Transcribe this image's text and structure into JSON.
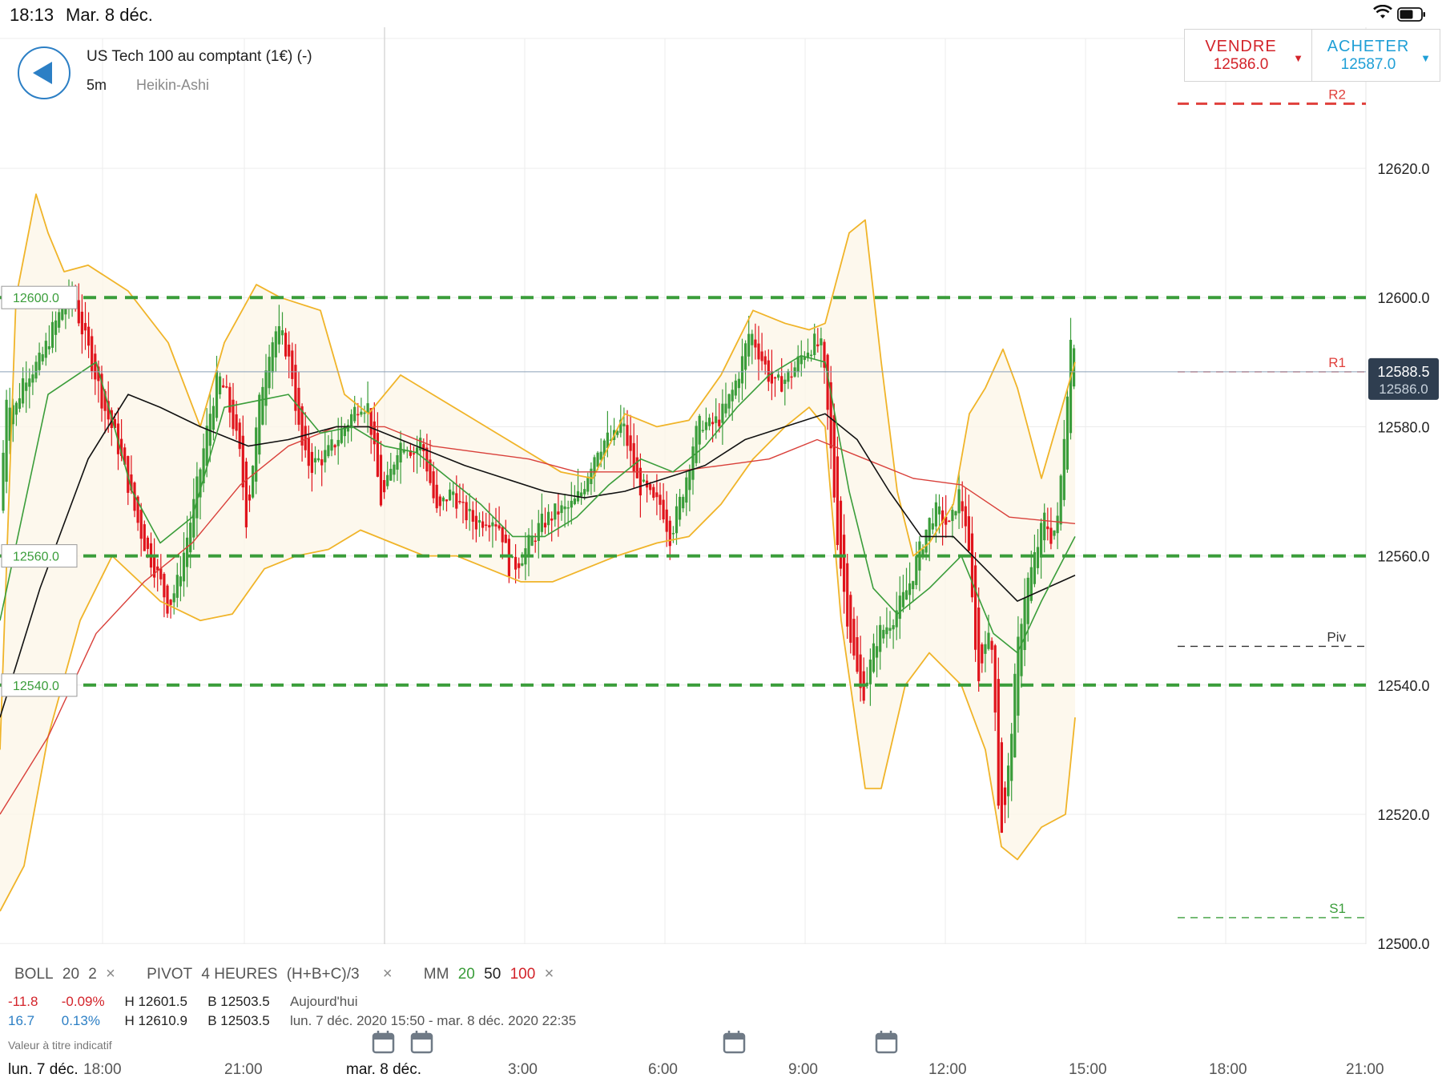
{
  "status_bar": {
    "time": "18:13",
    "date": "Mar. 8 déc."
  },
  "instrument": {
    "title": "US Tech 100 au comptant (1€) (-)",
    "timeframe": "5m",
    "chart_type": "Heikin-Ashi"
  },
  "trade": {
    "sell_label": "VENDRE",
    "sell_price": "12586.0",
    "buy_label": "ACHETER",
    "buy_price": "12587.0",
    "arrow": "▼"
  },
  "indicators": {
    "boll": {
      "name": "BOLL",
      "period": "20",
      "dev": "2"
    },
    "pivot": {
      "name": "PIVOT",
      "period": "4 HEURES",
      "formula": "(H+B+C)/3"
    },
    "mm": {
      "name": "MM",
      "p1": "20",
      "p2": "50",
      "p3": "100"
    },
    "remove_icon": "×"
  },
  "stats": [
    {
      "change": "-11.8",
      "pct": "-0.09%",
      "high": "H 12601.5",
      "low": "B 12503.5",
      "period": "Aujourd'hui",
      "color": "#d3232a"
    },
    {
      "change": "16.7",
      "pct": "0.13%",
      "high": "H 12610.9",
      "low": "B 12503.5",
      "period": "lun. 7 déc. 2020 15:50 - mar. 8 déc. 2020 22:35",
      "color": "#2c7fc5"
    }
  ],
  "disclaimer": "Valeur à titre indicatif",
  "price_axis": {
    "ticks": [
      "12620.0",
      "12600.0",
      "12580.0",
      "12560.0",
      "12540.0",
      "12520.0",
      "12500.0"
    ],
    "current_price": "12588.5",
    "current_price_under": "12586.0"
  },
  "levels": {
    "alerts": [
      "12600.0",
      "12560.0",
      "12540.0"
    ],
    "pivots": [
      {
        "name": "R2",
        "color": "#e0403c"
      },
      {
        "name": "R1",
        "color": "#e0403c"
      },
      {
        "name": "Piv",
        "color": "#333333"
      },
      {
        "name": "S1",
        "color": "#3a9d3a"
      }
    ]
  },
  "time_axis": {
    "labels": [
      "lun. 7 déc.",
      "18:00",
      "21:00",
      "mar. 8 déc.",
      "3:00",
      "6:00",
      "9:00",
      "12:00",
      "15:00",
      "18:00",
      "21:00"
    ]
  },
  "colors": {
    "up": "#3a9d3a",
    "down": "#e0141c",
    "boll": "#f0b429",
    "ma20": "#3a9d3a",
    "ma50": "#111111",
    "ma100": "#d9403a",
    "alert": "#3a9d3a"
  },
  "chart_data": {
    "type": "candlestick",
    "style": "Heikin-Ashi",
    "ylim": [
      12500,
      12620
    ],
    "y_ticks": [
      12500,
      12520,
      12540,
      12560,
      12580,
      12600,
      12620
    ],
    "x_ticks": [
      "18:00",
      "21:00",
      "3:00",
      "6:00",
      "9:00",
      "12:00",
      "15:00",
      "18:00",
      "21:00"
    ],
    "current_price": 12588.5,
    "alert_levels": [
      12600,
      12560,
      12540
    ],
    "pivot_levels": {
      "R2": 12630,
      "R1": 12588.5,
      "Piv": 12546,
      "S1": 12504
    },
    "indicators": [
      "BOLL 20 2",
      "PIVOT 4 HEURES (H+B+C)/3",
      "MM 20",
      "MM 50",
      "MM 100"
    ],
    "close_path": [
      [
        0,
        12567
      ],
      [
        8,
        12585
      ],
      [
        20,
        12583
      ],
      [
        30,
        12588
      ],
      [
        50,
        12590
      ],
      [
        62,
        12594
      ],
      [
        80,
        12599
      ],
      [
        90,
        12601
      ],
      [
        100,
        12596
      ],
      [
        115,
        12590
      ],
      [
        130,
        12583
      ],
      [
        145,
        12578
      ],
      [
        158,
        12572
      ],
      [
        170,
        12566
      ],
      [
        180,
        12562
      ],
      [
        190,
        12559
      ],
      [
        200,
        12556
      ],
      [
        210,
        12552
      ],
      [
        222,
        12556
      ],
      [
        232,
        12562
      ],
      [
        242,
        12568
      ],
      [
        252,
        12575
      ],
      [
        262,
        12582
      ],
      [
        272,
        12588
      ],
      [
        282,
        12585
      ],
      [
        292,
        12580
      ],
      [
        300,
        12575
      ],
      [
        308,
        12565
      ],
      [
        316,
        12575
      ],
      [
        325,
        12585
      ],
      [
        335,
        12592
      ],
      [
        345,
        12595
      ],
      [
        355,
        12593
      ],
      [
        365,
        12588
      ],
      [
        372,
        12580
      ],
      [
        380,
        12575
      ],
      [
        390,
        12574
      ],
      [
        400,
        12575
      ],
      [
        410,
        12576
      ],
      [
        420,
        12578
      ],
      [
        430,
        12580
      ],
      [
        440,
        12582
      ],
      [
        450,
        12584
      ],
      [
        460,
        12583
      ],
      [
        468,
        12575
      ],
      [
        476,
        12568
      ],
      [
        486,
        12572
      ],
      [
        496,
        12577
      ],
      [
        506,
        12578
      ],
      [
        516,
        12576
      ],
      [
        526,
        12578
      ],
      [
        536,
        12572
      ],
      [
        546,
        12566
      ],
      [
        556,
        12569
      ],
      [
        566,
        12570
      ],
      [
        576,
        12567
      ],
      [
        586,
        12566
      ],
      [
        596,
        12565
      ],
      [
        606,
        12566
      ],
      [
        616,
        12566
      ],
      [
        626,
        12564
      ],
      [
        636,
        12558
      ],
      [
        646,
        12559
      ],
      [
        656,
        12561
      ],
      [
        666,
        12563
      ],
      [
        676,
        12565
      ],
      [
        686,
        12566
      ],
      [
        696,
        12567
      ],
      [
        706,
        12567
      ],
      [
        716,
        12568
      ],
      [
        726,
        12570
      ],
      [
        736,
        12574
      ],
      [
        746,
        12577
      ],
      [
        756,
        12578
      ],
      [
        766,
        12578
      ],
      [
        776,
        12581
      ],
      [
        786,
        12576
      ],
      [
        796,
        12571
      ],
      [
        806,
        12570
      ],
      [
        816,
        12568
      ],
      [
        826,
        12568
      ],
      [
        836,
        12563
      ],
      [
        846,
        12567
      ],
      [
        856,
        12572
      ],
      [
        866,
        12578
      ],
      [
        876,
        12581
      ],
      [
        886,
        12580
      ],
      [
        896,
        12581
      ],
      [
        906,
        12583
      ],
      [
        916,
        12586
      ],
      [
        926,
        12590
      ],
      [
        936,
        12595
      ],
      [
        946,
        12592
      ],
      [
        956,
        12589
      ],
      [
        966,
        12586
      ],
      [
        976,
        12587
      ],
      [
        986,
        12588
      ],
      [
        996,
        12590
      ],
      [
        1006,
        12592
      ],
      [
        1016,
        12593
      ],
      [
        1026,
        12592
      ],
      [
        1036,
        12578
      ],
      [
        1046,
        12562
      ],
      [
        1056,
        12552
      ],
      [
        1066,
        12544
      ],
      [
        1076,
        12538
      ],
      [
        1086,
        12543
      ],
      [
        1096,
        12548
      ],
      [
        1106,
        12549
      ],
      [
        1116,
        12551
      ],
      [
        1126,
        12553
      ],
      [
        1136,
        12556
      ],
      [
        1146,
        12560
      ],
      [
        1156,
        12564
      ],
      [
        1166,
        12567
      ],
      [
        1176,
        12566
      ],
      [
        1186,
        12564
      ],
      [
        1196,
        12570
      ],
      [
        1206,
        12565
      ],
      [
        1214,
        12552
      ],
      [
        1222,
        12540
      ],
      [
        1230,
        12548
      ],
      [
        1240,
        12545
      ],
      [
        1248,
        12516
      ],
      [
        1256,
        12522
      ],
      [
        1264,
        12536
      ],
      [
        1272,
        12548
      ],
      [
        1280,
        12555
      ],
      [
        1288,
        12558
      ],
      [
        1296,
        12562
      ],
      [
        1304,
        12566
      ],
      [
        1312,
        12563
      ],
      [
        1320,
        12565
      ],
      [
        1330,
        12582
      ],
      [
        1338,
        12596
      ],
      [
        1342,
        12592
      ]
    ],
    "ma20": [
      [
        0,
        12550
      ],
      [
        60,
        12585
      ],
      [
        120,
        12590
      ],
      [
        165,
        12570
      ],
      [
        200,
        12562
      ],
      [
        240,
        12566
      ],
      [
        280,
        12583
      ],
      [
        320,
        12584
      ],
      [
        360,
        12585
      ],
      [
        400,
        12579
      ],
      [
        440,
        12580
      ],
      [
        480,
        12577
      ],
      [
        520,
        12576
      ],
      [
        560,
        12572
      ],
      [
        600,
        12568
      ],
      [
        640,
        12563
      ],
      [
        680,
        12563
      ],
      [
        720,
        12566
      ],
      [
        760,
        12571
      ],
      [
        800,
        12575
      ],
      [
        840,
        12573
      ],
      [
        880,
        12577
      ],
      [
        920,
        12583
      ],
      [
        960,
        12588
      ],
      [
        1000,
        12591
      ],
      [
        1030,
        12590
      ],
      [
        1060,
        12570
      ],
      [
        1090,
        12555
      ],
      [
        1120,
        12551
      ],
      [
        1160,
        12555
      ],
      [
        1200,
        12560
      ],
      [
        1240,
        12548
      ],
      [
        1270,
        12545
      ],
      [
        1300,
        12553
      ],
      [
        1342,
        12563
      ]
    ],
    "ma50": [
      [
        0,
        12535
      ],
      [
        50,
        12555
      ],
      [
        110,
        12575
      ],
      [
        160,
        12585
      ],
      [
        200,
        12583
      ],
      [
        250,
        12580
      ],
      [
        310,
        12577
      ],
      [
        360,
        12578
      ],
      [
        420,
        12580
      ],
      [
        460,
        12580
      ],
      [
        520,
        12577
      ],
      [
        580,
        12574
      ],
      [
        630,
        12572
      ],
      [
        680,
        12570
      ],
      [
        730,
        12569
      ],
      [
        780,
        12570
      ],
      [
        830,
        12572
      ],
      [
        880,
        12574
      ],
      [
        930,
        12578
      ],
      [
        980,
        12580
      ],
      [
        1030,
        12582
      ],
      [
        1070,
        12578
      ],
      [
        1110,
        12570
      ],
      [
        1150,
        12563
      ],
      [
        1190,
        12563
      ],
      [
        1230,
        12558
      ],
      [
        1270,
        12553
      ],
      [
        1342,
        12557
      ]
    ],
    "ma100": [
      [
        0,
        12520
      ],
      [
        60,
        12532
      ],
      [
        120,
        12548
      ],
      [
        180,
        12556
      ],
      [
        240,
        12562
      ],
      [
        300,
        12571
      ],
      [
        360,
        12577
      ],
      [
        420,
        12580
      ],
      [
        480,
        12580
      ],
      [
        540,
        12577
      ],
      [
        600,
        12576
      ],
      [
        660,
        12575
      ],
      [
        720,
        12573
      ],
      [
        780,
        12573
      ],
      [
        840,
        12573
      ],
      [
        900,
        12574
      ],
      [
        960,
        12575
      ],
      [
        1020,
        12578
      ],
      [
        1080,
        12575
      ],
      [
        1140,
        12572
      ],
      [
        1200,
        12571
      ],
      [
        1260,
        12566
      ],
      [
        1342,
        12565
      ]
    ],
    "boll_upper": [
      [
        0,
        12530
      ],
      [
        20,
        12600
      ],
      [
        45,
        12616
      ],
      [
        60,
        12610
      ],
      [
        80,
        12604
      ],
      [
        110,
        12605
      ],
      [
        160,
        12601
      ],
      [
        210,
        12593
      ],
      [
        250,
        12580
      ],
      [
        280,
        12593
      ],
      [
        320,
        12602
      ],
      [
        350,
        12600
      ],
      [
        400,
        12598
      ],
      [
        430,
        12585
      ],
      [
        460,
        12582
      ],
      [
        500,
        12588
      ],
      [
        540,
        12585
      ],
      [
        580,
        12582
      ],
      [
        620,
        12579
      ],
      [
        660,
        12576
      ],
      [
        700,
        12573
      ],
      [
        740,
        12572
      ],
      [
        780,
        12582
      ],
      [
        820,
        12580
      ],
      [
        860,
        12581
      ],
      [
        900,
        12588
      ],
      [
        940,
        12598
      ],
      [
        980,
        12596
      ],
      [
        1010,
        12595
      ],
      [
        1030,
        12596
      ],
      [
        1060,
        12610
      ],
      [
        1080,
        12612
      ],
      [
        1100,
        12590
      ],
      [
        1120,
        12570
      ],
      [
        1140,
        12560
      ],
      [
        1160,
        12562
      ],
      [
        1190,
        12568
      ],
      [
        1210,
        12582
      ],
      [
        1230,
        12586
      ],
      [
        1252,
        12592
      ],
      [
        1270,
        12586
      ],
      [
        1300,
        12572
      ],
      [
        1342,
        12590
      ]
    ],
    "boll_lower": [
      [
        0,
        12505
      ],
      [
        30,
        12512
      ],
      [
        60,
        12532
      ],
      [
        100,
        12550
      ],
      [
        140,
        12560
      ],
      [
        200,
        12553
      ],
      [
        250,
        12550
      ],
      [
        290,
        12551
      ],
      [
        330,
        12558
      ],
      [
        370,
        12560
      ],
      [
        410,
        12561
      ],
      [
        450,
        12564
      ],
      [
        490,
        12562
      ],
      [
        530,
        12560
      ],
      [
        570,
        12560
      ],
      [
        610,
        12558
      ],
      [
        650,
        12556
      ],
      [
        690,
        12556
      ],
      [
        730,
        12558
      ],
      [
        770,
        12560
      ],
      [
        820,
        12562
      ],
      [
        860,
        12563
      ],
      [
        900,
        12568
      ],
      [
        940,
        12575
      ],
      [
        980,
        12580
      ],
      [
        1010,
        12583
      ],
      [
        1030,
        12580
      ],
      [
        1050,
        12550
      ],
      [
        1080,
        12524
      ],
      [
        1100,
        12524
      ],
      [
        1130,
        12540
      ],
      [
        1160,
        12545
      ],
      [
        1200,
        12540
      ],
      [
        1230,
        12530
      ],
      [
        1250,
        12515
      ],
      [
        1270,
        12513
      ],
      [
        1300,
        12518
      ],
      [
        1330,
        12520
      ],
      [
        1342,
        12535
      ]
    ]
  }
}
